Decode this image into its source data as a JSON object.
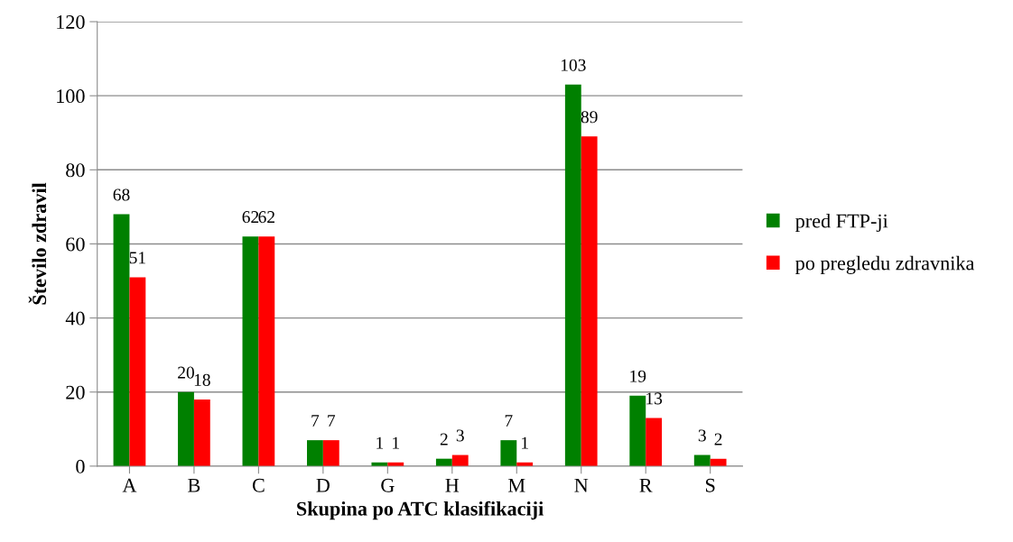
{
  "chart_data": {
    "type": "bar",
    "xlabel": "Skupina po ATC klasifikaciji",
    "ylabel": "Število zdravil",
    "categories": [
      "A",
      "B",
      "C",
      "D",
      "G",
      "H",
      "M",
      "N",
      "R",
      "S"
    ],
    "series": [
      {
        "name": "pred FTP-ji",
        "color": "#008000",
        "values": [
          68,
          20,
          62,
          7,
          1,
          2,
          7,
          103,
          19,
          3
        ]
      },
      {
        "name": "po pregledu zdravnika",
        "color": "#ff0000",
        "values": [
          51,
          18,
          62,
          7,
          1,
          3,
          1,
          89,
          13,
          2
        ]
      }
    ],
    "ylim": [
      0,
      120
    ],
    "yticks": [
      0,
      20,
      40,
      60,
      80,
      100,
      120
    ],
    "grid": "y",
    "legend": "right",
    "data_labels": true
  }
}
